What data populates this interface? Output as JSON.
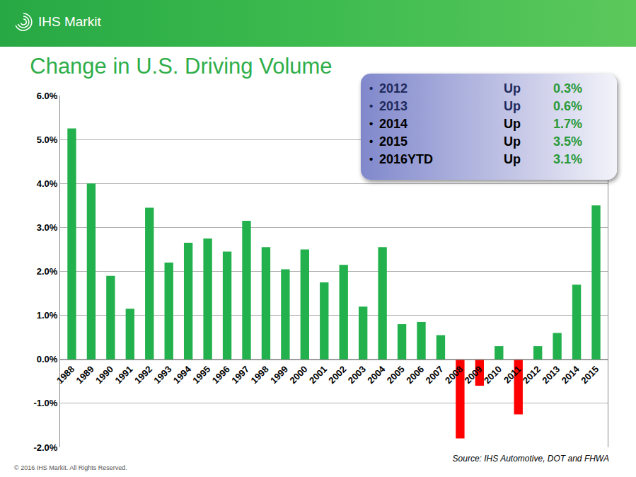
{
  "header": {
    "logo_text": "IHS Markit"
  },
  "chart_data": {
    "type": "bar",
    "title": "Change in U.S. Driving Volume",
    "categories": [
      "1988",
      "1989",
      "1990",
      "1991",
      "1992",
      "1993",
      "1994",
      "1995",
      "1996",
      "1997",
      "1998",
      "1999",
      "2000",
      "2001",
      "2002",
      "2003",
      "2004",
      "2005",
      "2006",
      "2007",
      "2008",
      "2009",
      "2010",
      "2011",
      "2012",
      "2013",
      "2014",
      "2015"
    ],
    "values": [
      5.25,
      4.0,
      1.9,
      1.15,
      3.45,
      2.2,
      2.65,
      2.75,
      2.45,
      3.15,
      2.55,
      2.05,
      2.5,
      1.75,
      2.15,
      1.2,
      2.55,
      0.8,
      0.85,
      0.55,
      -1.8,
      -0.6,
      0.3,
      -1.25,
      0.3,
      0.6,
      1.7,
      3.5
    ],
    "colors": [
      "#22b14c",
      "#22b14c",
      "#22b14c",
      "#22b14c",
      "#22b14c",
      "#22b14c",
      "#22b14c",
      "#22b14c",
      "#22b14c",
      "#22b14c",
      "#22b14c",
      "#22b14c",
      "#22b14c",
      "#22b14c",
      "#22b14c",
      "#22b14c",
      "#22b14c",
      "#22b14c",
      "#22b14c",
      "#22b14c",
      "#ff0000",
      "#ff0000",
      "#22b14c",
      "#ff0000",
      "#22b14c",
      "#22b14c",
      "#22b14c",
      "#22b14c"
    ],
    "ylim": [
      -2,
      6
    ],
    "yticks": [
      {
        "value": -2,
        "label": "-2.0%"
      },
      {
        "value": -1,
        "label": "-1.0%"
      },
      {
        "value": 0,
        "label": "0.0%"
      },
      {
        "value": 1,
        "label": "1.0%"
      },
      {
        "value": 2,
        "label": "2.0%"
      },
      {
        "value": 3,
        "label": "3.0%"
      },
      {
        "value": 4,
        "label": "4.0%"
      },
      {
        "value": 5,
        "label": "5.0%"
      },
      {
        "value": 6,
        "label": "6.0%"
      }
    ],
    "grid": true
  },
  "inset": {
    "rows": [
      [
        "2012",
        "Up",
        "0.3%"
      ],
      [
        "2013",
        "Up",
        "0.6%"
      ],
      [
        "2014",
        "Up",
        "1.7%"
      ],
      [
        "2015",
        "Up",
        "3.5%"
      ],
      [
        "2016YTD",
        "Up",
        "3.1%"
      ]
    ]
  },
  "source": "Source: IHS Automotive, DOT and FHWA",
  "copyright": "© 2016 IHS Markit. All Rights Reserved."
}
